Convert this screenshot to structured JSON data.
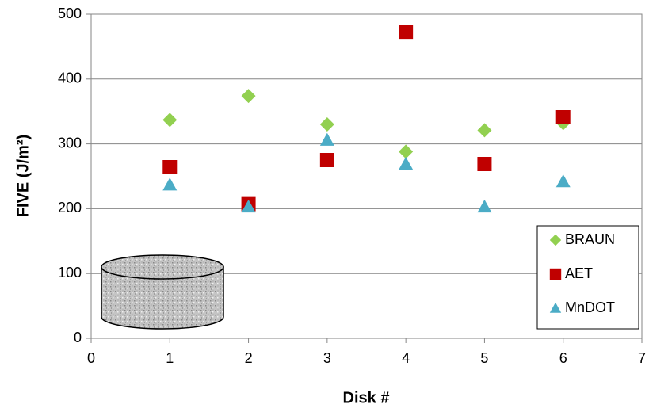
{
  "chart_data": {
    "type": "scatter",
    "x_label": "Disk #",
    "y_label": "FIVE (J/m²)",
    "xlim": [
      0,
      7
    ],
    "xticks": [
      0,
      1,
      2,
      3,
      4,
      5,
      6,
      7
    ],
    "ylim": [
      0,
      500
    ],
    "yticks": [
      0,
      100,
      200,
      300,
      400,
      500
    ],
    "grid": true,
    "legend": "lower right",
    "series": [
      {
        "name": "BRAUN",
        "color": "#92d050",
        "marker": "diamond",
        "x": [
          1,
          2,
          3,
          4,
          5,
          6
        ],
        "values": [
          337,
          374,
          330,
          288,
          321,
          332
        ]
      },
      {
        "name": "AET",
        "color": "#c00000",
        "marker": "square",
        "x": [
          1,
          2,
          3,
          4,
          5,
          6
        ],
        "values": [
          264,
          207,
          275,
          473,
          269,
          341
        ]
      },
      {
        "name": "MnDOT",
        "color": "#4bacc6",
        "marker": "triangle",
        "x": [
          1,
          2,
          3,
          4,
          5,
          6
        ],
        "values": [
          237,
          203,
          306,
          269,
          203,
          242
        ]
      }
    ]
  }
}
